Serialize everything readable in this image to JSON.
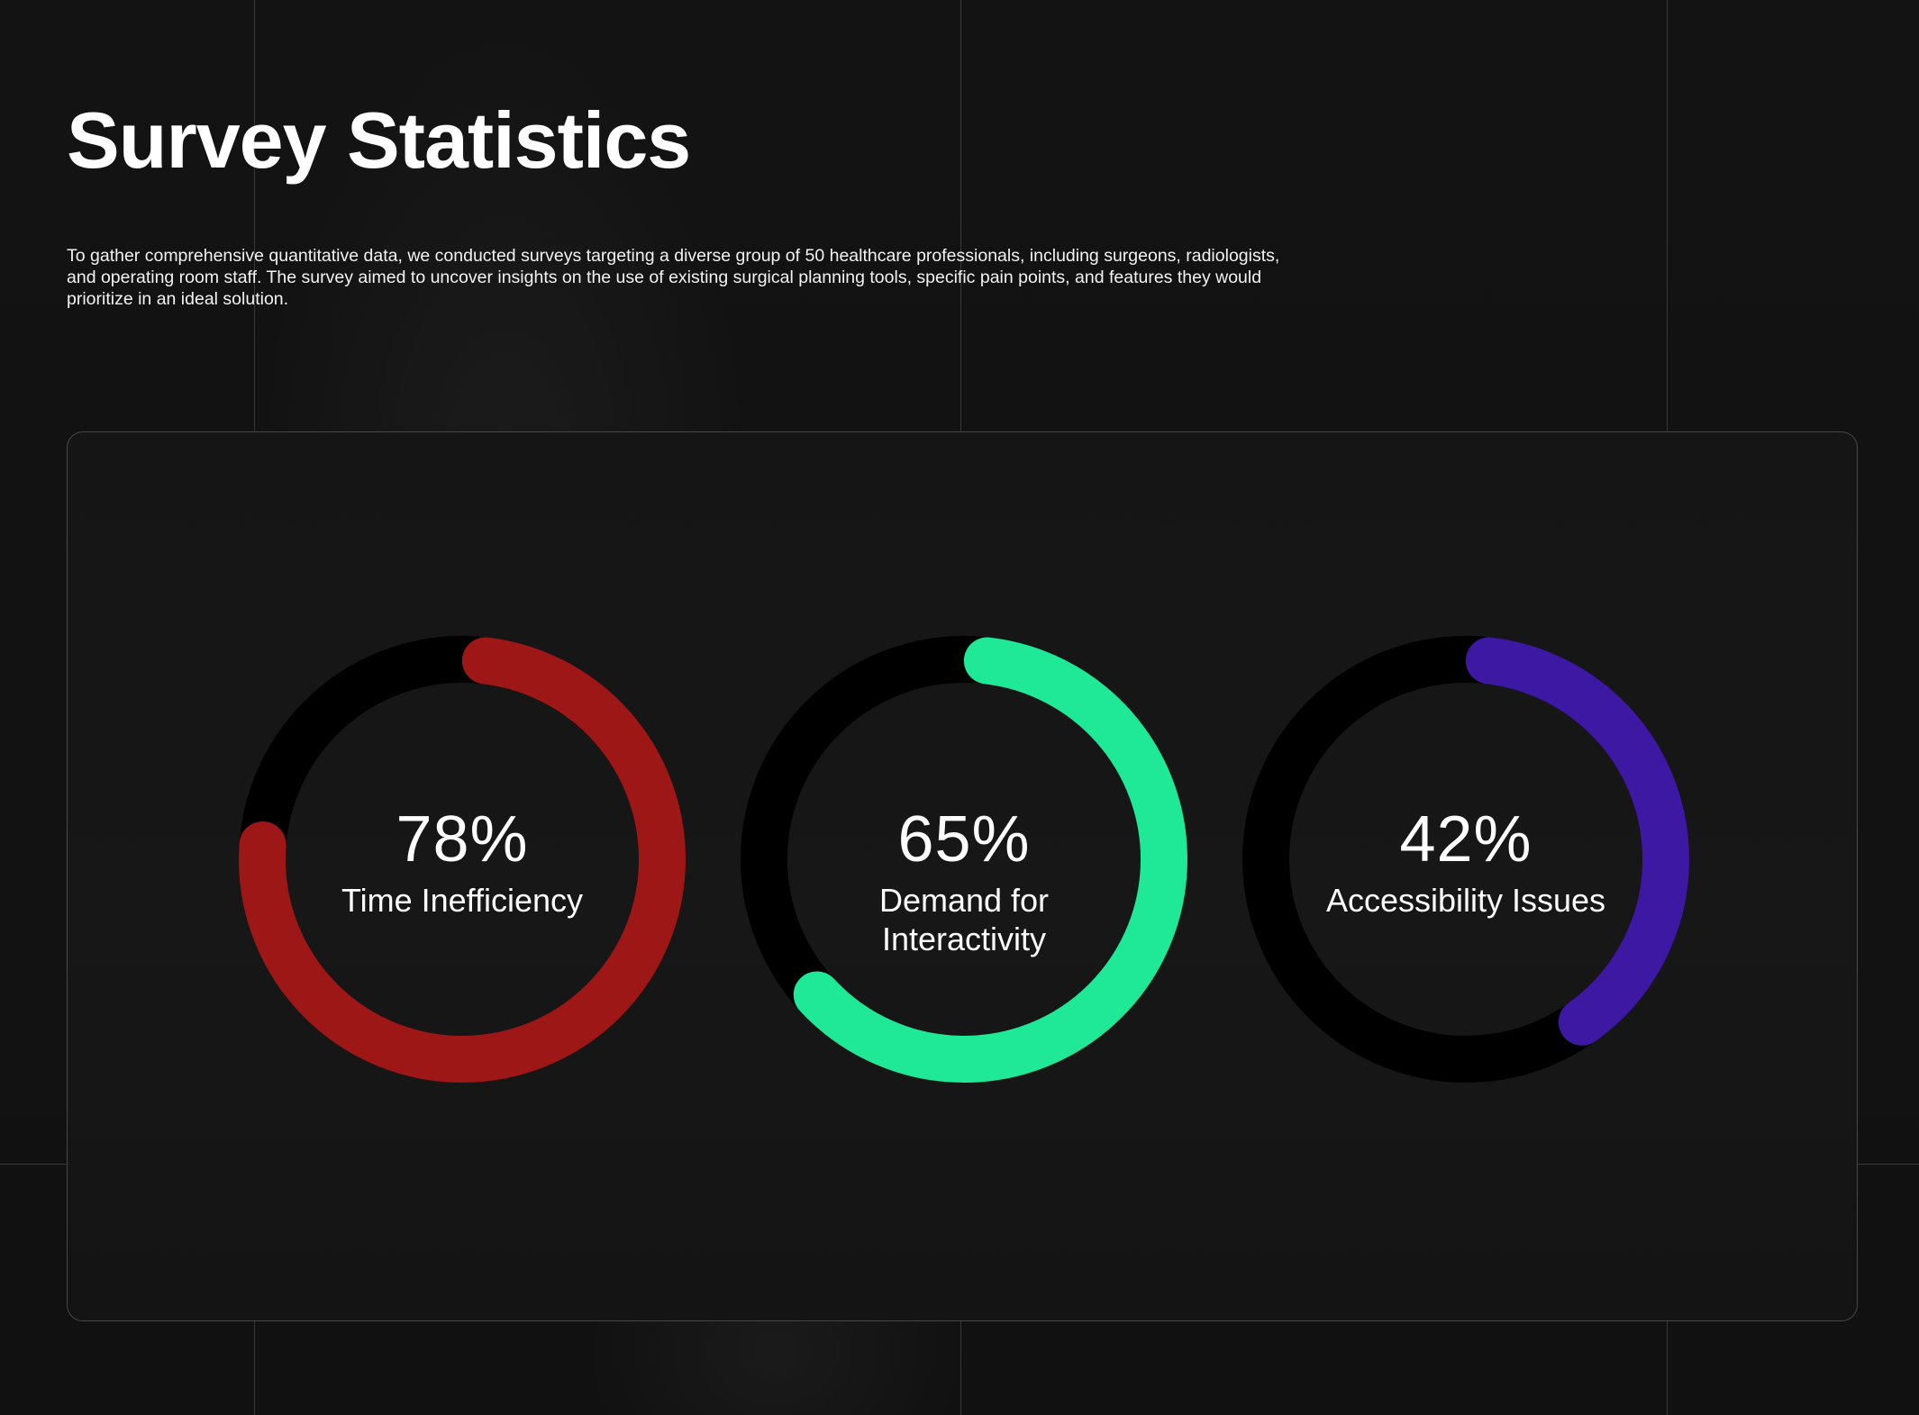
{
  "header": {
    "title": "Survey  Statistics",
    "intro": "To gather comprehensive quantitative data, we conducted surveys targeting a diverse group of 50 healthcare professionals, including surgeons, radiologists, and operating room staff. The survey aimed to uncover insights on the use of existing surgical planning tools, specific pain points, and features they would prioritize in an ideal solution."
  },
  "stats": [
    {
      "value_text": "78%",
      "value": 78,
      "label": "Time Inefficiency",
      "color": "#9e1717"
    },
    {
      "value_text": "65%",
      "value": 65,
      "label": "Demand for Interactivity",
      "color": "#1fe897"
    },
    {
      "value_text": "42%",
      "value": 42,
      "label": "Accessibility Issues",
      "color": "#3c18a3"
    }
  ],
  "colors": {
    "background": "#121212",
    "card": "#161616",
    "track": "#000000",
    "text": "#ffffff"
  }
}
